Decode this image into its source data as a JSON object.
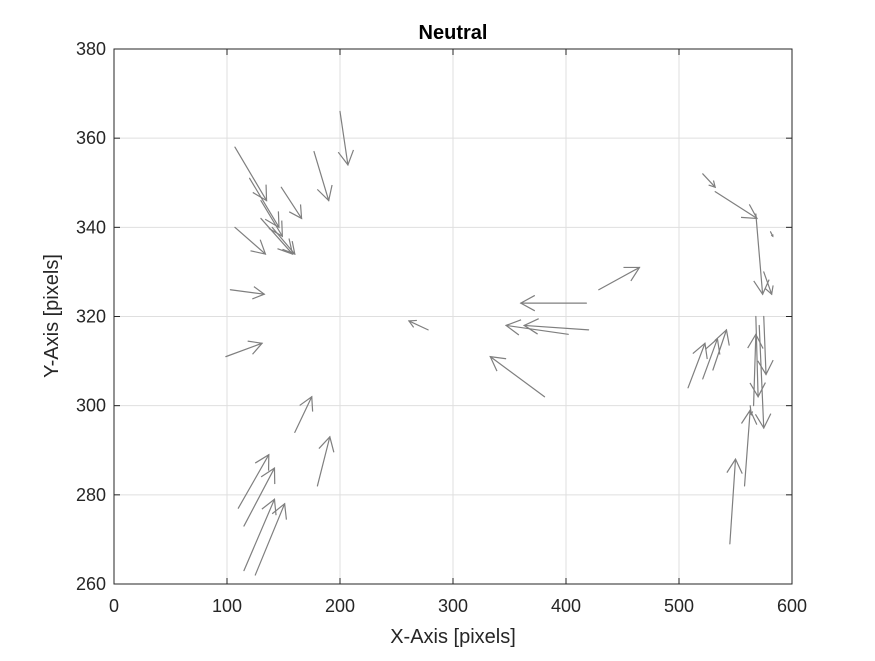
{
  "chart_data": {
    "type": "quiver",
    "title": "Neutral",
    "xlabel": "X-Axis [pixels]",
    "ylabel": "Y-Axis [pixels]",
    "xlim": [
      0,
      600
    ],
    "ylim": [
      260,
      380
    ],
    "xticks": [
      "0",
      "100",
      "200",
      "300",
      "400",
      "500",
      "600"
    ],
    "yticks": [
      "260",
      "280",
      "300",
      "320",
      "340",
      "360",
      "380"
    ],
    "grid": true,
    "arrow_color": "#7f7f7f",
    "vectors": [
      {
        "x": 107,
        "y": 358,
        "u": 28,
        "v": -12
      },
      {
        "x": 120,
        "y": 351,
        "u": 26,
        "v": -11
      },
      {
        "x": 130,
        "y": 346,
        "u": 19,
        "v": -8
      },
      {
        "x": 148,
        "y": 349,
        "u": 18,
        "v": -7
      },
      {
        "x": 177,
        "y": 357,
        "u": 13,
        "v": -11
      },
      {
        "x": 200,
        "y": 366,
        "u": 7,
        "v": -12
      },
      {
        "x": 107,
        "y": 340,
        "u": 27,
        "v": -6
      },
      {
        "x": 130,
        "y": 342,
        "u": 28,
        "v": -8
      },
      {
        "x": 140,
        "y": 340,
        "u": 20,
        "v": -6
      },
      {
        "x": 103,
        "y": 326,
        "u": 30,
        "v": -1
      },
      {
        "x": 99,
        "y": 311,
        "u": 32,
        "v": 3
      },
      {
        "x": 160,
        "y": 294,
        "u": 15,
        "v": 8
      },
      {
        "x": 180,
        "y": 282,
        "u": 11,
        "v": 11
      },
      {
        "x": 110,
        "y": 277,
        "u": 27,
        "v": 12
      },
      {
        "x": 115,
        "y": 273,
        "u": 27,
        "v": 13
      },
      {
        "x": 115,
        "y": 263,
        "u": 27,
        "v": 16
      },
      {
        "x": 125,
        "y": 262,
        "u": 26,
        "v": 16
      },
      {
        "x": 278,
        "y": 317,
        "u": -17,
        "v": 2
      },
      {
        "x": 381,
        "y": 302,
        "u": -48,
        "v": 9
      },
      {
        "x": 402,
        "y": 316,
        "u": -55,
        "v": 2
      },
      {
        "x": 420,
        "y": 317,
        "u": -57,
        "v": 1
      },
      {
        "x": 418,
        "y": 323,
        "u": -58,
        "v": 0
      },
      {
        "x": 429,
        "y": 326,
        "u": 36,
        "v": 5
      },
      {
        "x": 508,
        "y": 304,
        "u": 15,
        "v": 10
      },
      {
        "x": 521,
        "y": 306,
        "u": 13,
        "v": 9
      },
      {
        "x": 530,
        "y": 308,
        "u": 12,
        "v": 9
      },
      {
        "x": 532,
        "y": 348,
        "u": 37,
        "v": -6
      },
      {
        "x": 521,
        "y": 352,
        "u": 11,
        "v": -3
      },
      {
        "x": 568,
        "y": 343,
        "u": 6,
        "v": -18
      },
      {
        "x": 575,
        "y": 330,
        "u": 7,
        "v": -5
      },
      {
        "x": 568,
        "y": 320,
        "u": 2,
        "v": -18
      },
      {
        "x": 571,
        "y": 318,
        "u": 4,
        "v": -23
      },
      {
        "x": 575,
        "y": 320,
        "u": 2,
        "v": -13
      },
      {
        "x": 581,
        "y": 339,
        "u": 2,
        "v": -1
      },
      {
        "x": 545,
        "y": 269,
        "u": 5,
        "v": 19
      },
      {
        "x": 558,
        "y": 282,
        "u": 5,
        "v": 17
      },
      {
        "x": 566,
        "y": 300,
        "u": 2,
        "v": 16
      },
      {
        "x": 563,
        "y": 300,
        "u": 1,
        "v": -2
      }
    ]
  }
}
